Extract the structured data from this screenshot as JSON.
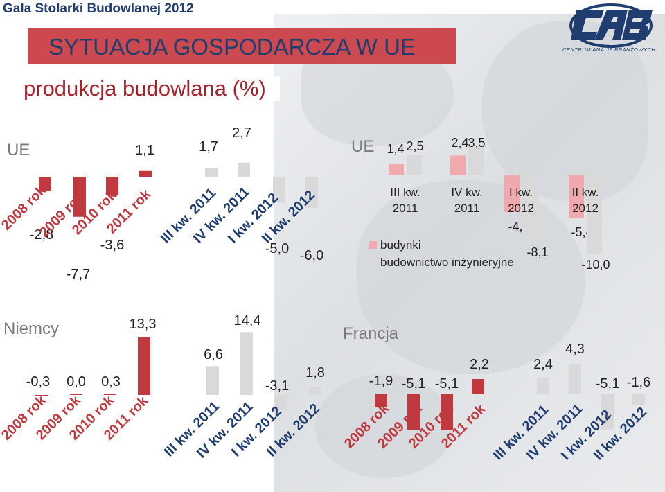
{
  "header": {
    "event_title": "Gala Stolarki Budowlanej 2012",
    "banner_title": "SYTUACJA GOSPODARCZA W UE",
    "subtitle": "produkcja budowlana (%)",
    "logo_sub": "CENTRUM ANALIZ BRANŻOWYCH"
  },
  "colors": {
    "annual": "#c0393f",
    "building": "#f0a9ac",
    "engineering": "#d9d9d9",
    "brand": "#1f3d6e"
  },
  "chart_data": [
    {
      "id": "ue",
      "type": "bar",
      "title": "UE",
      "categories": [
        "2008 rok",
        "2009 rok",
        "2010 rok",
        "2011 rok",
        "III kw. 2011",
        "IV kw. 2011",
        "I kw. 2012",
        "II kw. 2012"
      ],
      "values": [
        -2.8,
        -7.7,
        -3.6,
        1.1,
        1.7,
        2.7,
        -5.0,
        -6.0
      ],
      "labels": [
        "-2,8",
        "-7,7",
        "-3,6",
        "1,1",
        "1,7",
        "2,7",
        "-5,0",
        "-6,0"
      ]
    },
    {
      "id": "ue-quarterly",
      "type": "bar",
      "title": "UE",
      "categories": [
        "III kw. 2011",
        "IV kw. 2011",
        "I kw. 2012",
        "II kw. 2012"
      ],
      "series": [
        {
          "name": "budynki",
          "values": [
            1.4,
            2.4,
            -4.7,
            -5.4
          ],
          "labels": [
            "1,4",
            "2,4",
            "-4,7",
            "-5,4"
          ]
        },
        {
          "name": "budownictwo inżynieryjne",
          "values": [
            2.5,
            3.5,
            -8.1,
            -10.0
          ],
          "labels": [
            "2,5",
            "3,5",
            "-8,1",
            "-10,0"
          ]
        }
      ],
      "category_lines": [
        [
          "III kw.",
          "2011"
        ],
        [
          "IV kw.",
          "2011"
        ],
        [
          "I kw.",
          "2012"
        ],
        [
          "II kw.",
          "2012"
        ]
      ]
    },
    {
      "id": "niemcy",
      "type": "bar",
      "title": "Niemcy",
      "categories": [
        "2008 rok",
        "2009 rok",
        "2010 rok",
        "2011 rok",
        "III kw. 2011",
        "IV kw. 2011",
        "I kw. 2012",
        "II kw. 2012"
      ],
      "values": [
        -0.3,
        0.0,
        0.3,
        13.3,
        6.6,
        14.4,
        -3.1,
        1.8
      ],
      "labels": [
        "-0,3",
        "0,0",
        "0,3",
        "13,3",
        "6,6",
        "14,4",
        "-3,1",
        "1,8"
      ]
    },
    {
      "id": "francja",
      "type": "bar",
      "title": "Francja",
      "categories": [
        "2008 rok",
        "2009 rok",
        "2010 rok",
        "2011 rok",
        "III kw. 2011",
        "IV kw. 2011",
        "I kw. 2012",
        "II kw. 2012"
      ],
      "values": [
        -1.9,
        -5.1,
        -5.1,
        2.2,
        2.4,
        4.3,
        -5.1,
        -1.6
      ],
      "labels": [
        "-1,9",
        "-5,1",
        "-5,1",
        "2,2",
        "2,4",
        "4,3",
        "-5,1",
        "-1,6"
      ]
    }
  ]
}
